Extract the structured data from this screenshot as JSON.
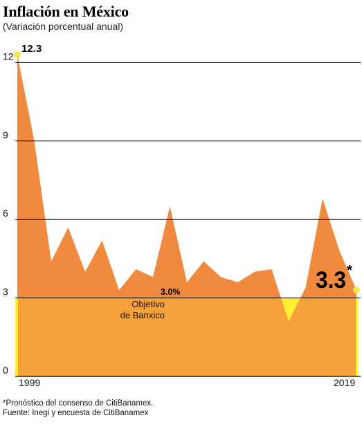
{
  "title": "Inflación en México",
  "subtitle": "(Variación porcentual anual)",
  "chart_data": {
    "type": "area",
    "x": [
      1999,
      2000,
      2001,
      2002,
      2003,
      2004,
      2005,
      2006,
      2007,
      2008,
      2009,
      2010,
      2011,
      2012,
      2013,
      2014,
      2015,
      2016,
      2017,
      2018,
      2019
    ],
    "values": [
      12.3,
      9.0,
      4.4,
      5.7,
      4.0,
      5.2,
      3.3,
      4.1,
      3.8,
      6.5,
      3.6,
      4.4,
      3.8,
      3.6,
      4.0,
      4.1,
      2.1,
      3.4,
      6.8,
      4.8,
      3.3
    ],
    "forecast_last": true,
    "ylim": [
      0,
      13
    ],
    "yticks": [
      0,
      3,
      6,
      9,
      12
    ],
    "xtick_labels": [
      "1999",
      "2019"
    ],
    "grid": true,
    "target": {
      "value": 3.0,
      "label": "3.0%",
      "description_lines": [
        "Objetivo",
        "de Banxico"
      ]
    },
    "annotations": {
      "start": "12.3",
      "end": "3.3",
      "end_mark": "*"
    },
    "colors": {
      "area": "#f08a3f",
      "target_band": "#f6a23a",
      "below_target": "#ffee33",
      "points": "#f4e84c",
      "grid": "#000000"
    }
  },
  "notes": {
    "forecast": "*Pronóstico del consenso de CitiBanamex.",
    "source": "Fuente: Inegi y encuesta de CitiBanamex"
  }
}
